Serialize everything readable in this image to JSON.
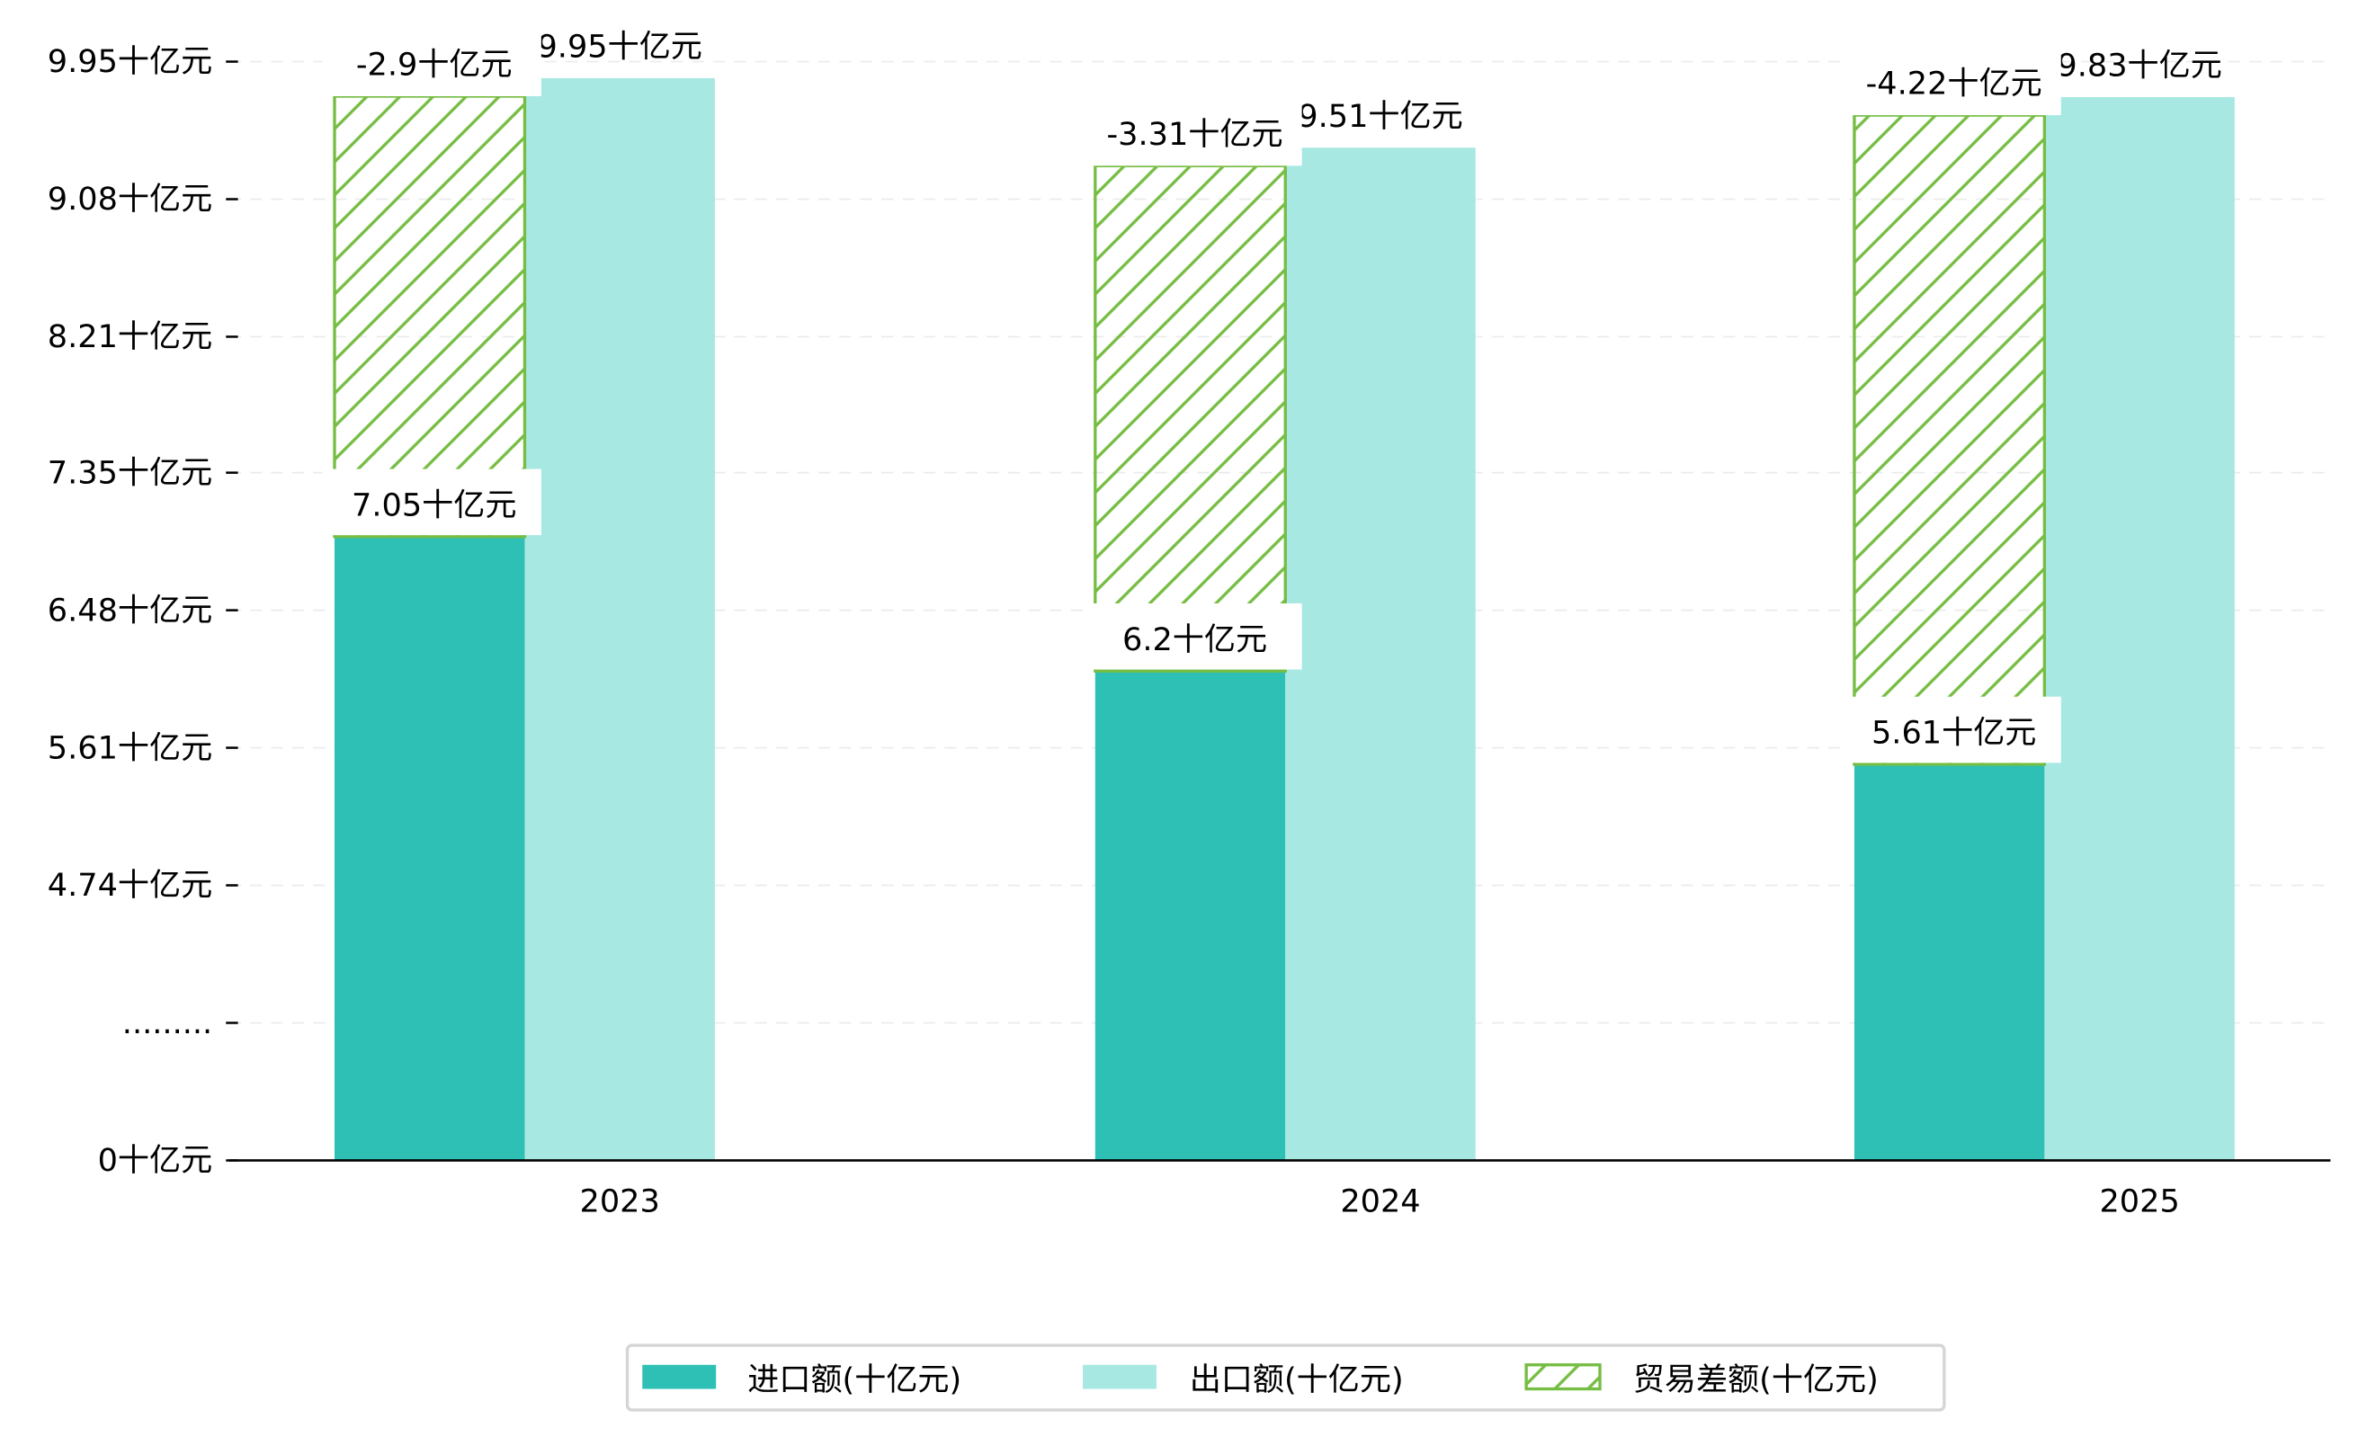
{
  "chart_data": {
    "type": "bar",
    "title": "",
    "xlabel": "",
    "ylabel": "",
    "categories": [
      "2023",
      "2024",
      "2025"
    ],
    "series": [
      {
        "name": "进口额(十亿元)",
        "values": [
          7.05,
          6.2,
          5.61
        ],
        "labels": [
          "7.05十亿元",
          "6.2十亿元",
          "5.61十亿元"
        ],
        "color": "#2ec0b4"
      },
      {
        "name": "出口额(十亿元)",
        "values": [
          9.95,
          9.51,
          9.83
        ],
        "labels": [
          "9.95十亿元",
          "9.51十亿元",
          "9.83十亿元"
        ],
        "color": "#a8e8e2"
      },
      {
        "name": "贸易差额(十亿元)",
        "values": [
          -2.9,
          -3.31,
          -4.22
        ],
        "labels": [
          "-2.9十亿元",
          "-3.31十亿元",
          "-4.22十亿元"
        ],
        "color": "#76bd43",
        "style": "hatched"
      }
    ],
    "y_ticks": [
      {
        "value": 3.0,
        "label": "0十亿元"
      },
      {
        "value": 3.87,
        "label": "........."
      },
      {
        "value": 4.74,
        "label": "4.74十亿元"
      },
      {
        "value": 5.61,
        "label": "5.61十亿元"
      },
      {
        "value": 6.48,
        "label": "6.48十亿元"
      },
      {
        "value": 7.35,
        "label": "7.35十亿元"
      },
      {
        "value": 8.21,
        "label": "8.21十亿元"
      },
      {
        "value": 9.08,
        "label": "9.08十亿元"
      },
      {
        "value": 9.95,
        "label": "9.95十亿元"
      }
    ],
    "ylim": [
      3.0,
      10.0
    ],
    "grid": "horizontal dashed",
    "legend": "bottom-center"
  }
}
